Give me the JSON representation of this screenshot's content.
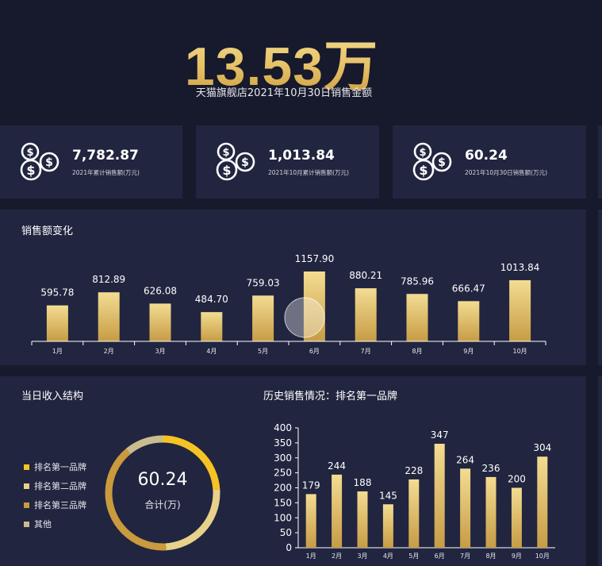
{
  "header": {
    "total_value": "13.53万",
    "caption": "天猫旗舰店2021年10月30日销售金额"
  },
  "stats": [
    {
      "value": "7,782.87",
      "label": "2021年累计销售额(万元)",
      "icon": "coins-dollar-icon"
    },
    {
      "value": "1,013.84",
      "label": "2021年10月累计销售额(万元)",
      "icon": "coins-dollar-icon"
    },
    {
      "value": "60.24",
      "label": "2021年10月30日销售额(万元)",
      "icon": "coins-dollar-icon"
    }
  ],
  "monthly_panel": {
    "title": "销售额变化"
  },
  "structure_panel": {
    "title": "当日收入结构",
    "center_value": "60.24",
    "center_label": "合计(万)",
    "legend": [
      {
        "name": "排名第一品牌",
        "color": "#f5c324"
      },
      {
        "name": "排名第二品牌",
        "color": "#e8d18a"
      },
      {
        "name": "排名第三品牌",
        "color": "#c99a3e"
      },
      {
        "name": "其他",
        "color": "#c9bd8f"
      }
    ]
  },
  "history_panel": {
    "title": "历史销售情况：排名第一品牌"
  },
  "chart_data": [
    {
      "type": "bar",
      "title": "销售额变化",
      "categories": [
        "1月",
        "2月",
        "3月",
        "4月",
        "5月",
        "6月",
        "7月",
        "8月",
        "9月",
        "10月"
      ],
      "values": [
        595.78,
        812.89,
        626.08,
        484.7,
        759.03,
        1157.9,
        880.21,
        785.96,
        666.47,
        1013.84
      ],
      "data_labels": [
        "595.78",
        "812.89",
        "626.08",
        "484.70",
        "759.03",
        "1157.90",
        "880.21",
        "785.96",
        "666.47",
        "1013.84"
      ],
      "ylim": [
        0,
        1300
      ],
      "grid": false
    },
    {
      "type": "pie",
      "title": "当日收入结构",
      "labels": [
        "排名第一品牌",
        "排名第二品牌",
        "排名第三品牌",
        "其他"
      ],
      "values": [
        0.24,
        0.25,
        0.4,
        0.11
      ]
    },
    {
      "type": "bar",
      "title": "历史销售情况：排名第一品牌",
      "categories": [
        "1月",
        "2月",
        "3月",
        "4月",
        "5月",
        "6月",
        "7月",
        "8月",
        "9月",
        "10月"
      ],
      "values": [
        179,
        244,
        188,
        145,
        228,
        347,
        264,
        236,
        200,
        304
      ],
      "y_ticks": [
        "0",
        "50",
        "100",
        "150",
        "200",
        "250",
        "300",
        "350",
        "400"
      ],
      "ylim": [
        0,
        400
      ],
      "grid": false
    }
  ]
}
